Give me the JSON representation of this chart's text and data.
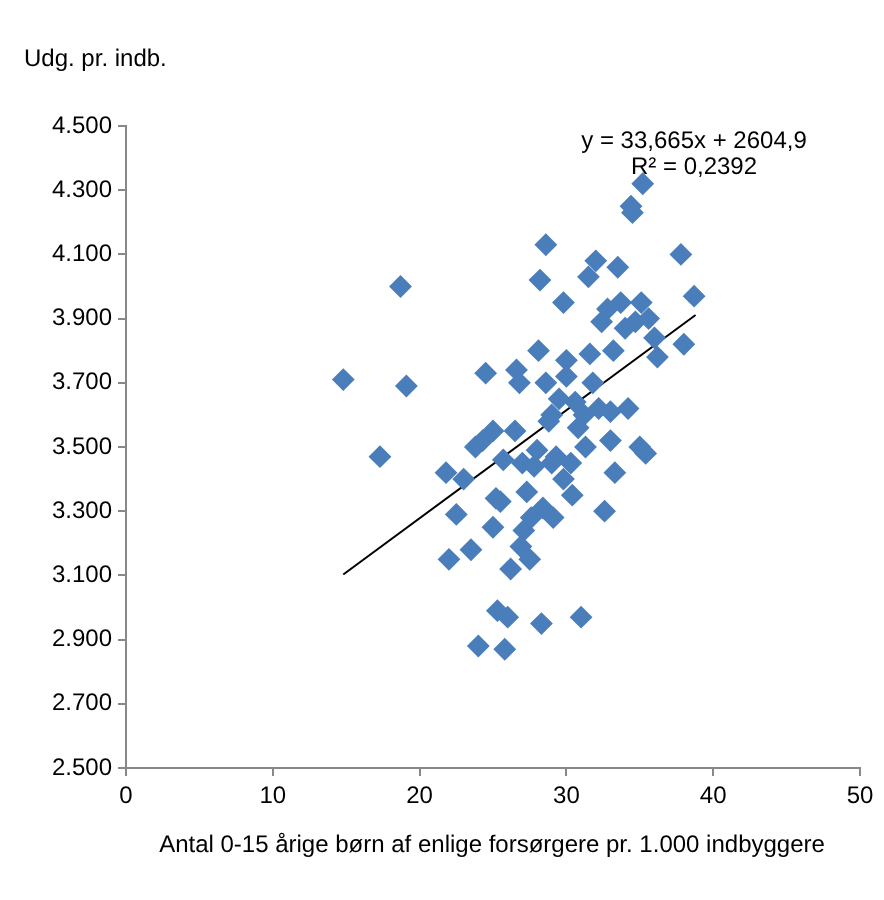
{
  "chart_data": {
    "type": "scatter",
    "ylabel": "Udg. pr. indb.",
    "xlabel": "Antal 0-15 årige børn af enlige forsørgere pr. 1.000 indbyggere",
    "annotations": [
      "y = 33,665x + 2604,9",
      "R² = 0,2392"
    ],
    "xlim": [
      0,
      50
    ],
    "xticks": [
      0,
      10,
      20,
      30,
      40,
      50
    ],
    "ylim": [
      2500,
      4500
    ],
    "yticks": [
      {
        "value": 2500,
        "label": "2.500"
      },
      {
        "value": 2700,
        "label": "2.700"
      },
      {
        "value": 2900,
        "label": "2.900"
      },
      {
        "value": 3100,
        "label": "3.100"
      },
      {
        "value": 3300,
        "label": "3.300"
      },
      {
        "value": 3500,
        "label": "3.500"
      },
      {
        "value": 3700,
        "label": "3.700"
      },
      {
        "value": 3900,
        "label": "3.900"
      },
      {
        "value": 4100,
        "label": "4.100"
      },
      {
        "value": 4300,
        "label": "4.300"
      },
      {
        "value": 4500,
        "label": "4.500"
      }
    ],
    "grid": false,
    "legend": false,
    "marker": "diamond",
    "series": [
      {
        "type": "scatter",
        "color": "#4a7ebb",
        "x": [
          14.8,
          17.3,
          18.7,
          19.1,
          21.8,
          22.0,
          22.5,
          23.0,
          23.5,
          23.8,
          24.0,
          24.3,
          24.5,
          25.0,
          25.0,
          25.2,
          25.3,
          25.5,
          25.7,
          25.8,
          26.0,
          26.2,
          26.5,
          26.6,
          26.8,
          26.9,
          27.0,
          27.1,
          27.3,
          27.5,
          27.6,
          27.8,
          28.0,
          28.1,
          28.2,
          28.3,
          28.4,
          28.6,
          28.6,
          28.8,
          29.0,
          29.1,
          29.3,
          29.5,
          29.8,
          29.8,
          30.0,
          30.0,
          30.3,
          30.4,
          30.6,
          30.8,
          31.0,
          31.2,
          31.3,
          31.5,
          31.6,
          31.8,
          32.0,
          32.2,
          32.4,
          32.6,
          32.8,
          33.0,
          33.2,
          33.3,
          33.5,
          33.7,
          34.0,
          34.2,
          34.4,
          34.5,
          34.7,
          35.0,
          35.1,
          35.2,
          35.4,
          35.6,
          36.0,
          36.2,
          37.8,
          38.0,
          38.7,
          33.0,
          29.0
        ],
        "values": [
          3710,
          3470,
          4000,
          3690,
          3420,
          3150,
          3290,
          3400,
          3180,
          3500,
          2880,
          3520,
          3730,
          3550,
          3250,
          3340,
          2990,
          3330,
          3460,
          2870,
          2970,
          3120,
          3550,
          3740,
          3700,
          3190,
          3450,
          3240,
          3360,
          3150,
          3280,
          3440,
          3490,
          3800,
          4020,
          2950,
          3310,
          3700,
          4130,
          3580,
          3450,
          3280,
          3470,
          3650,
          3400,
          3950,
          3720,
          3770,
          3450,
          3350,
          3640,
          3560,
          2970,
          3600,
          3500,
          4030,
          3790,
          3700,
          4080,
          3620,
          3890,
          3300,
          3930,
          3520,
          3800,
          3420,
          4060,
          3950,
          3870,
          3620,
          4250,
          4230,
          3890,
          3500,
          3950,
          4320,
          3480,
          3900,
          3840,
          3780,
          4100,
          3820,
          3970,
          3610,
          3600
        ]
      },
      {
        "type": "line",
        "color": "#000000",
        "marker": "none",
        "x": [
          14.8,
          38.8
        ],
        "values": [
          3103,
          3911
        ]
      }
    ]
  }
}
